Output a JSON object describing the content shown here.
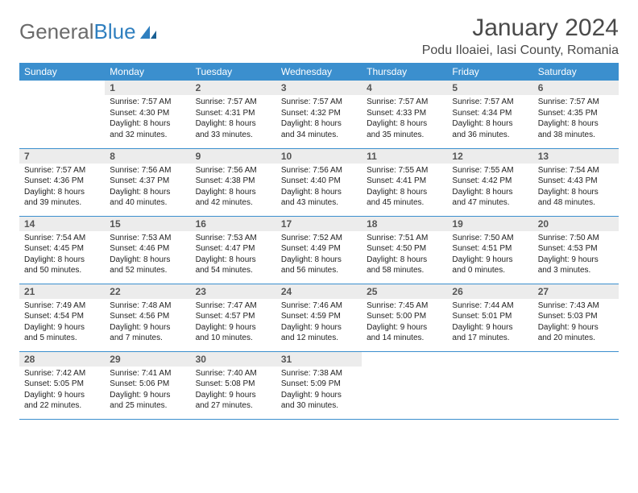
{
  "brand": {
    "word1": "General",
    "word2": "Blue"
  },
  "colors": {
    "header_bg": "#3b8fce",
    "header_text": "#ffffff",
    "daynum_bg": "#ececec",
    "row_border": "#3b8fce",
    "logo_gray": "#6b6b6b",
    "logo_blue": "#2f7fbf",
    "text": "#333333"
  },
  "title": "January 2024",
  "location": "Podu Iloaiei, Iasi County, Romania",
  "weekdays": [
    "Sunday",
    "Monday",
    "Tuesday",
    "Wednesday",
    "Thursday",
    "Friday",
    "Saturday"
  ],
  "weeks": [
    [
      {
        "empty": true
      },
      {
        "day": "1",
        "sunrise": "Sunrise: 7:57 AM",
        "sunset": "Sunset: 4:30 PM",
        "dl1": "Daylight: 8 hours",
        "dl2": "and 32 minutes."
      },
      {
        "day": "2",
        "sunrise": "Sunrise: 7:57 AM",
        "sunset": "Sunset: 4:31 PM",
        "dl1": "Daylight: 8 hours",
        "dl2": "and 33 minutes."
      },
      {
        "day": "3",
        "sunrise": "Sunrise: 7:57 AM",
        "sunset": "Sunset: 4:32 PM",
        "dl1": "Daylight: 8 hours",
        "dl2": "and 34 minutes."
      },
      {
        "day": "4",
        "sunrise": "Sunrise: 7:57 AM",
        "sunset": "Sunset: 4:33 PM",
        "dl1": "Daylight: 8 hours",
        "dl2": "and 35 minutes."
      },
      {
        "day": "5",
        "sunrise": "Sunrise: 7:57 AM",
        "sunset": "Sunset: 4:34 PM",
        "dl1": "Daylight: 8 hours",
        "dl2": "and 36 minutes."
      },
      {
        "day": "6",
        "sunrise": "Sunrise: 7:57 AM",
        "sunset": "Sunset: 4:35 PM",
        "dl1": "Daylight: 8 hours",
        "dl2": "and 38 minutes."
      }
    ],
    [
      {
        "day": "7",
        "sunrise": "Sunrise: 7:57 AM",
        "sunset": "Sunset: 4:36 PM",
        "dl1": "Daylight: 8 hours",
        "dl2": "and 39 minutes."
      },
      {
        "day": "8",
        "sunrise": "Sunrise: 7:56 AM",
        "sunset": "Sunset: 4:37 PM",
        "dl1": "Daylight: 8 hours",
        "dl2": "and 40 minutes."
      },
      {
        "day": "9",
        "sunrise": "Sunrise: 7:56 AM",
        "sunset": "Sunset: 4:38 PM",
        "dl1": "Daylight: 8 hours",
        "dl2": "and 42 minutes."
      },
      {
        "day": "10",
        "sunrise": "Sunrise: 7:56 AM",
        "sunset": "Sunset: 4:40 PM",
        "dl1": "Daylight: 8 hours",
        "dl2": "and 43 minutes."
      },
      {
        "day": "11",
        "sunrise": "Sunrise: 7:55 AM",
        "sunset": "Sunset: 4:41 PM",
        "dl1": "Daylight: 8 hours",
        "dl2": "and 45 minutes."
      },
      {
        "day": "12",
        "sunrise": "Sunrise: 7:55 AM",
        "sunset": "Sunset: 4:42 PM",
        "dl1": "Daylight: 8 hours",
        "dl2": "and 47 minutes."
      },
      {
        "day": "13",
        "sunrise": "Sunrise: 7:54 AM",
        "sunset": "Sunset: 4:43 PM",
        "dl1": "Daylight: 8 hours",
        "dl2": "and 48 minutes."
      }
    ],
    [
      {
        "day": "14",
        "sunrise": "Sunrise: 7:54 AM",
        "sunset": "Sunset: 4:45 PM",
        "dl1": "Daylight: 8 hours",
        "dl2": "and 50 minutes."
      },
      {
        "day": "15",
        "sunrise": "Sunrise: 7:53 AM",
        "sunset": "Sunset: 4:46 PM",
        "dl1": "Daylight: 8 hours",
        "dl2": "and 52 minutes."
      },
      {
        "day": "16",
        "sunrise": "Sunrise: 7:53 AM",
        "sunset": "Sunset: 4:47 PM",
        "dl1": "Daylight: 8 hours",
        "dl2": "and 54 minutes."
      },
      {
        "day": "17",
        "sunrise": "Sunrise: 7:52 AM",
        "sunset": "Sunset: 4:49 PM",
        "dl1": "Daylight: 8 hours",
        "dl2": "and 56 minutes."
      },
      {
        "day": "18",
        "sunrise": "Sunrise: 7:51 AM",
        "sunset": "Sunset: 4:50 PM",
        "dl1": "Daylight: 8 hours",
        "dl2": "and 58 minutes."
      },
      {
        "day": "19",
        "sunrise": "Sunrise: 7:50 AM",
        "sunset": "Sunset: 4:51 PM",
        "dl1": "Daylight: 9 hours",
        "dl2": "and 0 minutes."
      },
      {
        "day": "20",
        "sunrise": "Sunrise: 7:50 AM",
        "sunset": "Sunset: 4:53 PM",
        "dl1": "Daylight: 9 hours",
        "dl2": "and 3 minutes."
      }
    ],
    [
      {
        "day": "21",
        "sunrise": "Sunrise: 7:49 AM",
        "sunset": "Sunset: 4:54 PM",
        "dl1": "Daylight: 9 hours",
        "dl2": "and 5 minutes."
      },
      {
        "day": "22",
        "sunrise": "Sunrise: 7:48 AM",
        "sunset": "Sunset: 4:56 PM",
        "dl1": "Daylight: 9 hours",
        "dl2": "and 7 minutes."
      },
      {
        "day": "23",
        "sunrise": "Sunrise: 7:47 AM",
        "sunset": "Sunset: 4:57 PM",
        "dl1": "Daylight: 9 hours",
        "dl2": "and 10 minutes."
      },
      {
        "day": "24",
        "sunrise": "Sunrise: 7:46 AM",
        "sunset": "Sunset: 4:59 PM",
        "dl1": "Daylight: 9 hours",
        "dl2": "and 12 minutes."
      },
      {
        "day": "25",
        "sunrise": "Sunrise: 7:45 AM",
        "sunset": "Sunset: 5:00 PM",
        "dl1": "Daylight: 9 hours",
        "dl2": "and 14 minutes."
      },
      {
        "day": "26",
        "sunrise": "Sunrise: 7:44 AM",
        "sunset": "Sunset: 5:01 PM",
        "dl1": "Daylight: 9 hours",
        "dl2": "and 17 minutes."
      },
      {
        "day": "27",
        "sunrise": "Sunrise: 7:43 AM",
        "sunset": "Sunset: 5:03 PM",
        "dl1": "Daylight: 9 hours",
        "dl2": "and 20 minutes."
      }
    ],
    [
      {
        "day": "28",
        "sunrise": "Sunrise: 7:42 AM",
        "sunset": "Sunset: 5:05 PM",
        "dl1": "Daylight: 9 hours",
        "dl2": "and 22 minutes."
      },
      {
        "day": "29",
        "sunrise": "Sunrise: 7:41 AM",
        "sunset": "Sunset: 5:06 PM",
        "dl1": "Daylight: 9 hours",
        "dl2": "and 25 minutes."
      },
      {
        "day": "30",
        "sunrise": "Sunrise: 7:40 AM",
        "sunset": "Sunset: 5:08 PM",
        "dl1": "Daylight: 9 hours",
        "dl2": "and 27 minutes."
      },
      {
        "day": "31",
        "sunrise": "Sunrise: 7:38 AM",
        "sunset": "Sunset: 5:09 PM",
        "dl1": "Daylight: 9 hours",
        "dl2": "and 30 minutes."
      },
      {
        "empty": true
      },
      {
        "empty": true
      },
      {
        "empty": true
      }
    ]
  ]
}
